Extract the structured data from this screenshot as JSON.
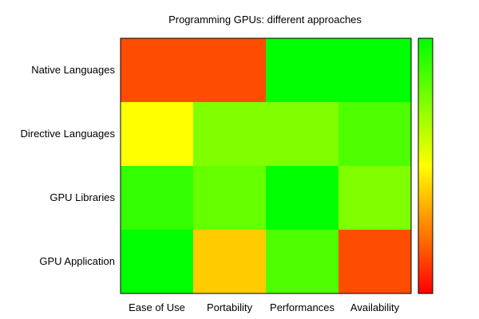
{
  "chart_data": {
    "type": "heatmap",
    "title": "Programming GPUs: different approaches",
    "xlabel": "",
    "ylabel": "",
    "x_categories": [
      "Ease of Use",
      "Portability",
      "Performances",
      "Availability"
    ],
    "y_categories": [
      "Native Languages",
      "Directive Languages",
      "GPU Libraries",
      "GPU Application"
    ],
    "values": [
      [
        0.15,
        0.15,
        1.0,
        1.0
      ],
      [
        0.5,
        0.75,
        0.75,
        0.85
      ],
      [
        0.9,
        0.8,
        1.0,
        0.75
      ],
      [
        1.0,
        0.4,
        0.85,
        0.15
      ]
    ],
    "zlim": [
      0,
      1
    ],
    "colorbar": true,
    "colormap": [
      "#ff0000",
      "#ffff00",
      "#00ff00"
    ],
    "grid": false
  }
}
